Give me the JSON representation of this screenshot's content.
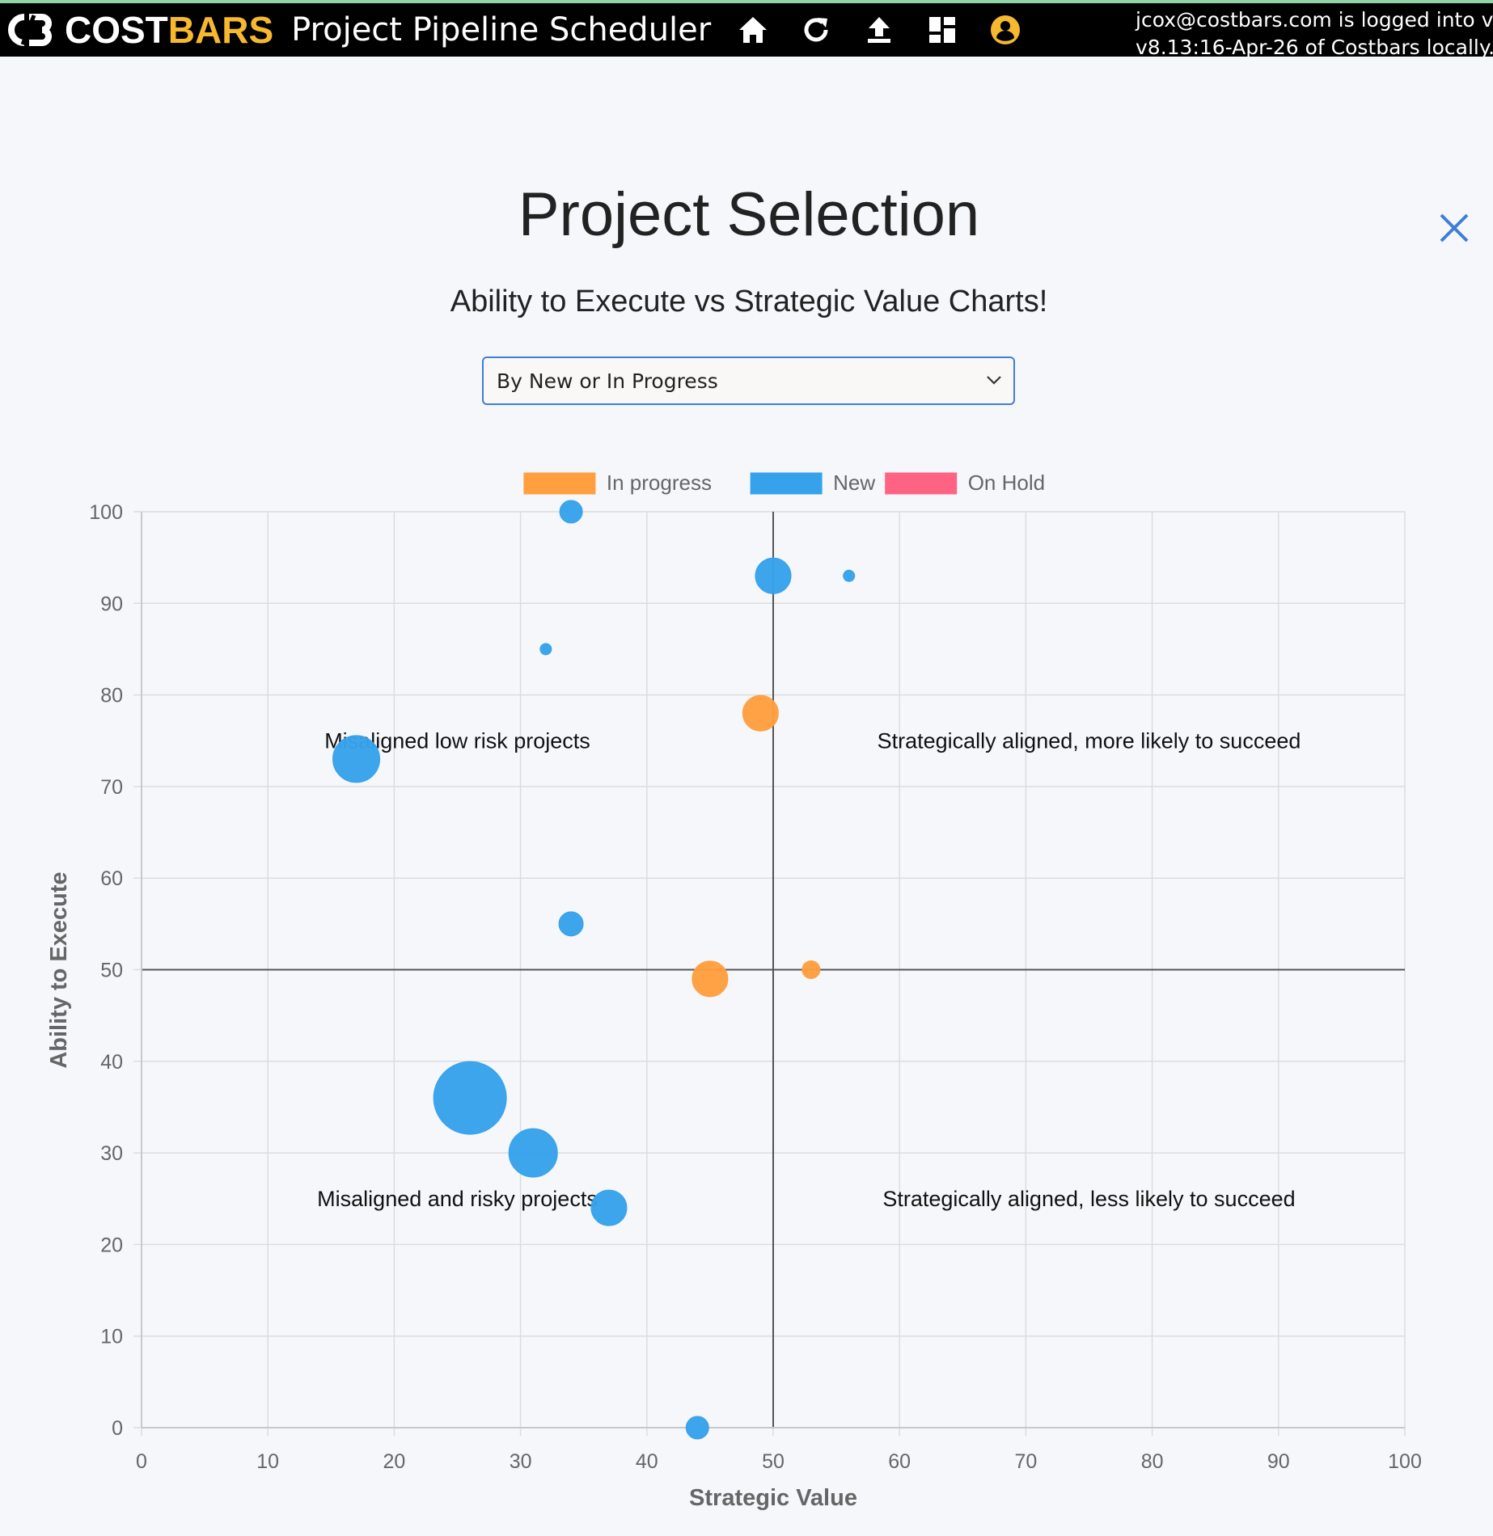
{
  "navbar": {
    "brand_part1": "COSTBARS",
    "brand_part2": "",
    "brand_white": "COST",
    "brand_yellow": "BARS",
    "app_title": "Project Pipeline Scheduler",
    "icons": [
      "home-icon",
      "refresh-icon",
      "upload-icon",
      "dashboard-icon",
      "user-icon"
    ],
    "login_line1": "jcox@costbars.com is logged into vers",
    "login_line2": "v8.13:16-Apr-26 of Costbars locally."
  },
  "page": {
    "title": "Project Selection",
    "subtitle": "Ability to Execute vs Strategic Value Charts!",
    "select_value": "By New or In Progress"
  },
  "colors": {
    "in_progress": "#ff9f40",
    "new": "#36a2eb",
    "on_hold": "#ff6384",
    "brand_yellow": "#f5b82e"
  },
  "chart_data": {
    "type": "scatter",
    "xlabel": "Strategic Value",
    "ylabel": "Ability to Execute",
    "xlim": [
      0,
      100
    ],
    "ylim": [
      0,
      100
    ],
    "xticks": [
      "0",
      "10",
      "20",
      "30",
      "40",
      "50",
      "60",
      "70",
      "80",
      "90",
      "100"
    ],
    "yticks": [
      "0",
      "10",
      "20",
      "30",
      "40",
      "50",
      "60",
      "70",
      "80",
      "90",
      "100"
    ],
    "grid": true,
    "legend_position": "top-center",
    "reference_lines": {
      "x": 50,
      "y": 50
    },
    "series": [
      {
        "name": "In progress",
        "color": "#ff9f40",
        "points": [
          {
            "x": 49,
            "y": 78,
            "r": 22
          },
          {
            "x": 45,
            "y": 49,
            "r": 22
          },
          {
            "x": 53,
            "y": 50,
            "r": 11
          }
        ]
      },
      {
        "name": "New",
        "color": "#36a2eb",
        "points": [
          {
            "x": 34,
            "y": 100,
            "r": 14
          },
          {
            "x": 50,
            "y": 93,
            "r": 22
          },
          {
            "x": 56,
            "y": 93,
            "r": 7
          },
          {
            "x": 32,
            "y": 85,
            "r": 7
          },
          {
            "x": 17,
            "y": 73,
            "r": 29
          },
          {
            "x": 34,
            "y": 55,
            "r": 15
          },
          {
            "x": 26,
            "y": 36,
            "r": 45
          },
          {
            "x": 31,
            "y": 30,
            "r": 30
          },
          {
            "x": 37,
            "y": 24,
            "r": 22
          },
          {
            "x": 44,
            "y": 0,
            "r": 14
          }
        ]
      },
      {
        "name": "On Hold",
        "color": "#ff6384",
        "points": []
      }
    ],
    "quadrant_labels": [
      {
        "text": "Misaligned low risk projects",
        "x": 25,
        "y": 75
      },
      {
        "text": "Strategically aligned, more likely to succeed",
        "x": 75,
        "y": 75
      },
      {
        "text": "Misaligned and risky projects",
        "x": 25,
        "y": 25
      },
      {
        "text": "Strategically aligned, less likely to succeed",
        "x": 75,
        "y": 25
      }
    ]
  }
}
